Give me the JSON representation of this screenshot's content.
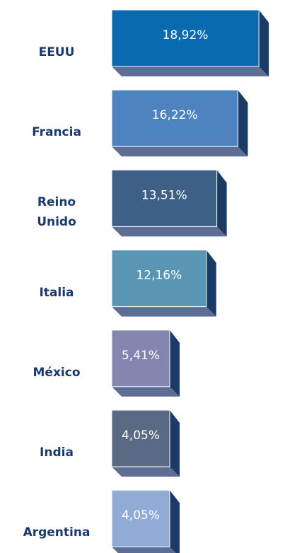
{
  "chart_data": {
    "type": "bar",
    "categories": [
      "EEUU",
      "Francia",
      "Reino Unido",
      "Italia",
      "México",
      "India",
      "Argentina"
    ],
    "values": [
      18.92,
      16.22,
      13.51,
      12.16,
      5.41,
      4.05,
      4.05
    ],
    "value_labels": [
      "18,92%",
      "16,22%",
      "13,51%",
      "12,16%",
      "5,41%",
      "4,05%",
      "4,05%"
    ],
    "colors": [
      "#0a6ab0",
      "#4f83c0",
      "#3e5f86",
      "#5b95b4",
      "#8486b0",
      "#5a6a85",
      "#90acd6"
    ]
  }
}
